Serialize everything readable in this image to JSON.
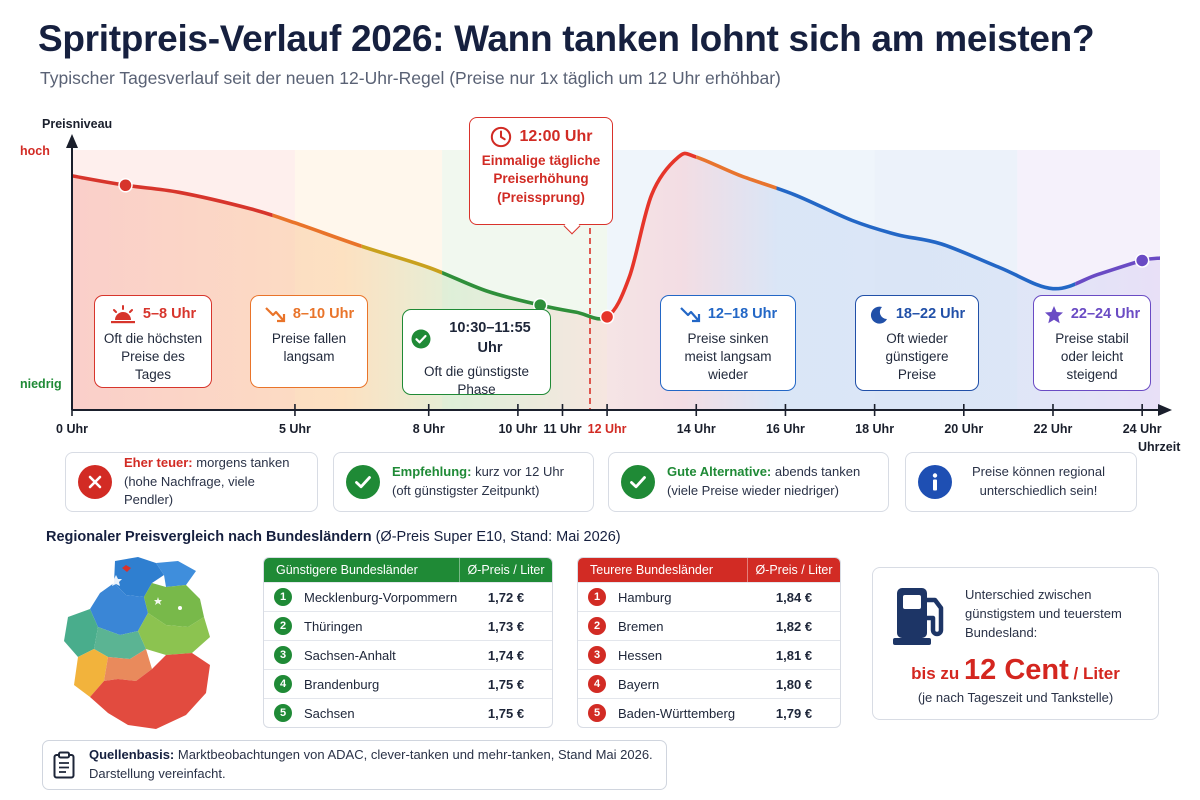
{
  "header": {
    "title": "Spritpreis-Verlauf 2026: Wann tanken lohnt sich am meisten?",
    "subtitle": "Typischer Tagesverlauf seit der neuen 12-Uhr-Regel (Preise nur 1x täglich um 12 Uhr erhöhbar)"
  },
  "chart_data": {
    "type": "line",
    "title": "Spritpreis-Verlauf 2026: Wann tanken lohnt sich am meisten?",
    "ylabel": "Preisniveau",
    "xlabel": "Uhrzeit",
    "y_levels": [
      {
        "label": "hoch",
        "color": "#d22b24"
      },
      {
        "label": "niedrig",
        "color": "#1f8a36"
      }
    ],
    "x_ticks": [
      {
        "label": "0 Uhr",
        "x": 0
      },
      {
        "label": "5 Uhr",
        "x": 5
      },
      {
        "label": "8 Uhr",
        "x": 8
      },
      {
        "label": "10 Uhr",
        "x": 10
      },
      {
        "label": "11 Uhr",
        "x": 11
      },
      {
        "label": "12 Uhr",
        "x": 12,
        "highlight": true
      },
      {
        "label": "14 Uhr",
        "x": 14
      },
      {
        "label": "16 Uhr",
        "x": 16
      },
      {
        "label": "18 Uhr",
        "x": 18
      },
      {
        "label": "20 Uhr",
        "x": 20
      },
      {
        "label": "22 Uhr",
        "x": 22
      },
      {
        "label": "24 Uhr",
        "x": 24
      }
    ],
    "xlim": [
      0,
      24.4
    ],
    "ylim": [
      0,
      1
    ],
    "series": [
      {
        "points": [
          [
            0,
            0.89
          ],
          [
            1.2,
            0.85
          ],
          [
            2.4,
            0.82
          ],
          [
            4.0,
            0.75
          ],
          [
            5.0,
            0.69
          ],
          [
            6.5,
            0.59
          ],
          [
            8.0,
            0.5
          ],
          [
            9.3,
            0.4
          ],
          [
            10.5,
            0.34
          ],
          [
            11.3,
            0.31
          ],
          [
            12.0,
            0.29
          ],
          [
            12.5,
            0.46
          ],
          [
            13.0,
            0.81
          ],
          [
            13.6,
            0.97
          ],
          [
            14.0,
            0.97
          ],
          [
            15.0,
            0.89
          ],
          [
            16.2,
            0.81
          ],
          [
            17.5,
            0.7
          ],
          [
            18.5,
            0.64
          ],
          [
            19.5,
            0.6
          ],
          [
            20.8,
            0.5
          ],
          [
            22.0,
            0.41
          ],
          [
            23.0,
            0.47
          ],
          [
            24.0,
            0.53
          ],
          [
            24.4,
            0.54
          ]
        ],
        "segment_colors": [
          {
            "from": 0,
            "to": 4.5,
            "color": "#d7352c"
          },
          {
            "from": 4.5,
            "to": 6.5,
            "color": "#e9742a"
          },
          {
            "from": 6.5,
            "to": 8.3,
            "color": "#c9a11e"
          },
          {
            "from": 8.3,
            "to": 12.0,
            "color": "#2f8f3a"
          },
          {
            "from": 12.0,
            "to": 14.0,
            "color": "#e6352a"
          },
          {
            "from": 14.0,
            "to": 15.8,
            "color": "#e8742e"
          },
          {
            "from": 15.8,
            "to": 22.5,
            "color": "#2367c6"
          },
          {
            "from": 22.5,
            "to": 24.4,
            "color": "#6a4bc4"
          }
        ],
        "markers": [
          {
            "x": 1.2,
            "y": 0.85,
            "color": "#d7352c"
          },
          {
            "x": 10.5,
            "y": 0.34,
            "color": "#2f8f3a"
          },
          {
            "x": 12.0,
            "y": 0.29,
            "color": "#e6352a"
          },
          {
            "x": 24.0,
            "y": 0.53,
            "color": "#6a4bc4"
          }
        ]
      }
    ],
    "bands": [
      {
        "from": 0,
        "to": 5,
        "color": "#fde2df"
      },
      {
        "from": 5,
        "to": 8.3,
        "color": "#fff0dc"
      },
      {
        "from": 8.3,
        "to": 12.0,
        "color": "#e5f3e2"
      },
      {
        "from": 12.0,
        "to": 18,
        "color": "#e2ecf8"
      },
      {
        "from": 18,
        "to": 21.2,
        "color": "#dce7f6"
      },
      {
        "from": 21.2,
        "to": 24.4,
        "color": "#ece6f8"
      }
    ],
    "grid": false,
    "legend": "none"
  },
  "noon_callout": {
    "time": "12:00 Uhr",
    "text_line1": "Einmalige tägliche",
    "text_line2": "Preiserhöhung",
    "text_line3": "(Preissprung)"
  },
  "phases": [
    {
      "id": "morning",
      "time": "5–8 Uhr",
      "line1": "Oft die höchsten",
      "line2": "Preise des Tages",
      "color": "#d7352c",
      "icon": "sunrise-icon"
    },
    {
      "id": "falling",
      "time": "8–10 Uhr",
      "line1": "Preise fallen",
      "line2": "langsam",
      "color": "#e9742a",
      "icon": "trend-down-icon"
    },
    {
      "id": "best",
      "time": "10:30–11:55 Uhr",
      "line1": "Oft die günstigste",
      "line2": "Phase",
      "color": "#1f8a36",
      "icon": "check-circle-icon"
    },
    {
      "id": "afternoon",
      "time": "12–18 Uhr",
      "line1": "Preise sinken",
      "line2": "meist langsam",
      "line3": "wieder",
      "color": "#2367c6",
      "icon": "trend-down-icon"
    },
    {
      "id": "evening",
      "time": "18–22 Uhr",
      "line1": "Oft wieder",
      "line2": "günstigere",
      "line3": "Preise",
      "color": "#2150a8",
      "icon": "moon-icon"
    },
    {
      "id": "night",
      "time": "22–24 Uhr",
      "line1": "Preise stabil",
      "line2": "oder leicht",
      "line3": "steigend",
      "color": "#6a4bc4",
      "icon": "star-icon"
    }
  ],
  "tips": [
    {
      "label": "Eher teuer:",
      "text": "morgens tanken",
      "detail": "(hohe Nachfrage, viele Pendler)",
      "color": "#d22b24",
      "icon": "x-circle-icon"
    },
    {
      "label": "Empfehlung:",
      "text": "kurz vor 12 Uhr",
      "detail": "(oft günstigster Zeitpunkt)",
      "color": "#1f8a36",
      "icon": "check-circle-icon"
    },
    {
      "label": "Gute Alternative:",
      "text": "abends tanken",
      "detail": "(viele Preise wieder niedriger)",
      "color": "#1f8a36",
      "icon": "check-circle-icon"
    },
    {
      "line1": "Preise können regional",
      "line2": "unterschiedlich sein!",
      "color": "#1e4fb3",
      "icon": "info-icon"
    }
  ],
  "regional": {
    "title_bold": "Regionaler Preisvergleich nach Bundesländern",
    "title_rest": "(Ø-Preis Super E10, Stand: Mai 2026)",
    "cheap": {
      "header_name": "Günstigere Bundesländer",
      "header_price": "Ø-Preis / Liter",
      "color": "#1f8a36",
      "rows": [
        {
          "rank": "1",
          "name": "Mecklenburg-Vorpommern",
          "price": "1,72 €"
        },
        {
          "rank": "2",
          "name": "Thüringen",
          "price": "1,73 €"
        },
        {
          "rank": "3",
          "name": "Sachsen-Anhalt",
          "price": "1,74 €"
        },
        {
          "rank": "4",
          "name": "Brandenburg",
          "price": "1,75 €"
        },
        {
          "rank": "5",
          "name": "Sachsen",
          "price": "1,75 €"
        }
      ]
    },
    "expensive": {
      "header_name": "Teurere Bundesländer",
      "header_price": "Ø-Preis / Liter",
      "color": "#d22b24",
      "rows": [
        {
          "rank": "1",
          "name": "Hamburg",
          "price": "1,84 €"
        },
        {
          "rank": "2",
          "name": "Bremen",
          "price": "1,82 €"
        },
        {
          "rank": "3",
          "name": "Hessen",
          "price": "1,81 €"
        },
        {
          "rank": "4",
          "name": "Bayern",
          "price": "1,80 €"
        },
        {
          "rank": "5",
          "name": "Baden-Württemberg",
          "price": "1,79 €"
        }
      ]
    }
  },
  "difference": {
    "line1": "Unterschied zwischen",
    "line2": "günstigstem und teuerstem",
    "line3": "Bundesland:",
    "prefix": "bis zu",
    "amount": "12 Cent",
    "suffix": "/ Liter",
    "note": "(je nach Tageszeit und Tankstelle)",
    "icon": "fuel-pump-icon",
    "icon_color": "#1d3566"
  },
  "source": {
    "label": "Quellenbasis:",
    "text": "Marktbeobachtungen von ADAC, clever-tanken und mehr-tanken, Stand Mai 2026.",
    "line2": "Darstellung vereinfacht.",
    "icon": "clipboard-icon"
  }
}
